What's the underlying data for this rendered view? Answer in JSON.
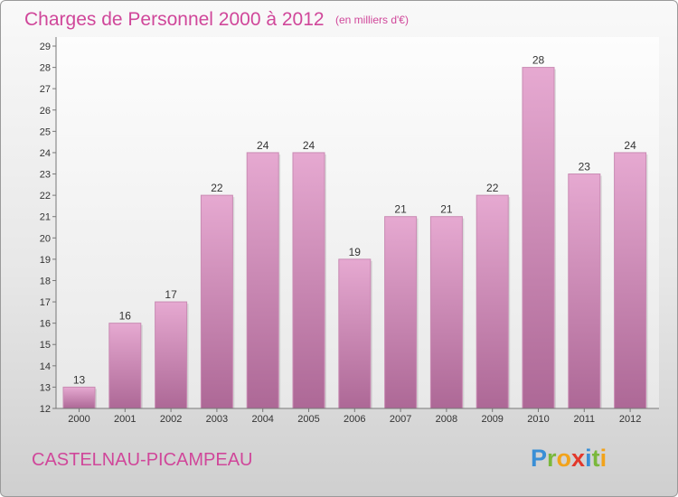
{
  "chart_data": {
    "type": "bar",
    "title": "Charges de Personnel 2000 à 2012",
    "subtitle": "(en milliers d'€)",
    "xlabel": "",
    "ylabel": "",
    "categories": [
      "2000",
      "2001",
      "2002",
      "2003",
      "2004",
      "2005",
      "2006",
      "2007",
      "2008",
      "2009",
      "2010",
      "2011",
      "2012"
    ],
    "values": [
      13,
      16,
      17,
      22,
      24,
      24,
      19,
      21,
      21,
      22,
      28,
      23,
      24
    ],
    "ylim": [
      12,
      29
    ],
    "yticks": [
      "12",
      "13",
      "14",
      "15",
      "16",
      "17",
      "18",
      "19",
      "20",
      "21",
      "22",
      "23",
      "24",
      "25",
      "26",
      "27",
      "28",
      "29"
    ],
    "grid": false,
    "bar_color": "#d38ab8"
  },
  "footer": {
    "commune": "CASTELNAU-PICAMPEAU",
    "logo_letters": [
      {
        "ch": "P",
        "color": "#3a8fd6"
      },
      {
        "ch": "r",
        "color": "#7ab83c"
      },
      {
        "ch": "o",
        "color": "#f2a31b"
      },
      {
        "ch": "x",
        "color": "#e2382b"
      },
      {
        "ch": "i",
        "color": "#3a8fd6"
      },
      {
        "ch": "t",
        "color": "#7ab83c"
      },
      {
        "ch": "i",
        "color": "#f2a31b"
      }
    ]
  }
}
